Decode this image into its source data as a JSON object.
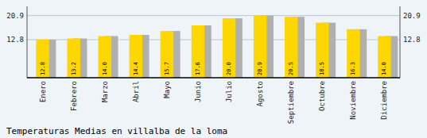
{
  "chart_data": {
    "type": "bar",
    "title": "Temperaturas Medias en villalba de la loma",
    "categories": [
      "Enero",
      "Febrero",
      "Marzo",
      "Abril",
      "Mayo",
      "Junio",
      "Julio",
      "Agosto",
      "Septiembre",
      "Octubre",
      "Noviembre",
      "Diciembre"
    ],
    "values": [
      12.8,
      13.2,
      14.0,
      14.4,
      15.7,
      17.6,
      20.0,
      20.9,
      20.5,
      18.5,
      16.3,
      14.0
    ],
    "value_labels": [
      "12.8",
      "13.2",
      "14.0",
      "14.4",
      "15.7",
      "17.6",
      "20.0",
      "20.9",
      "20.5",
      "18.5",
      "16.3",
      "14.0"
    ],
    "color": "#FFD700",
    "ylim": [
      0,
      24.0
    ],
    "yticks": [
      12.8,
      20.9
    ],
    "grid": true,
    "data_labels": true
  }
}
